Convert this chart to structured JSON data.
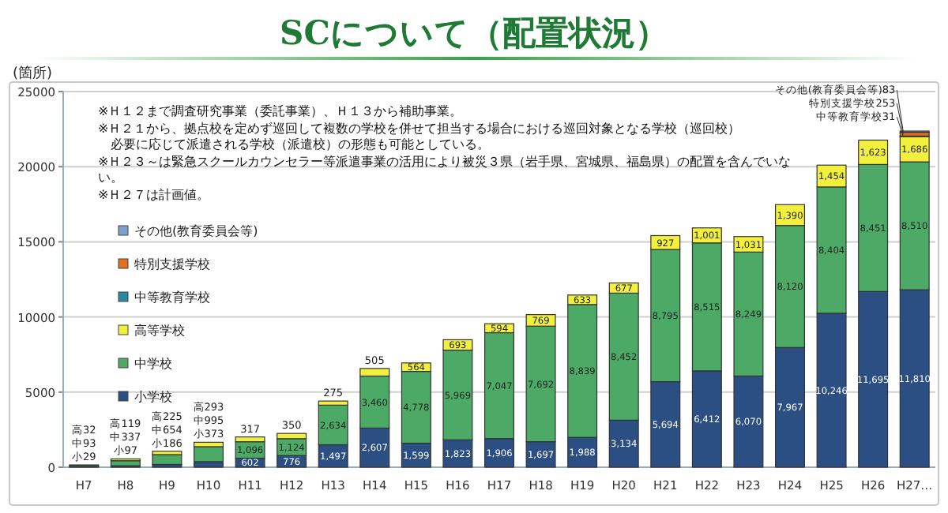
{
  "chart_data": {
    "type": "bar",
    "stacked": true,
    "title": "SCについて（配置状況）",
    "ylabel": "(箇所)",
    "categories": [
      "H7",
      "H8",
      "H9",
      "H10",
      "H11",
      "H12",
      "H13",
      "H14",
      "H15",
      "H16",
      "H17",
      "H18",
      "H19",
      "H20",
      "H21",
      "H22",
      "H23",
      "H24",
      "H25",
      "H26",
      "H27…"
    ],
    "series": [
      {
        "name": "小学校",
        "color": "#2b4f82",
        "values": [
          29,
          97,
          186,
          373,
          602,
          776,
          1497,
          2607,
          1599,
          1823,
          1906,
          1697,
          1988,
          3134,
          5694,
          6412,
          6070,
          7967,
          10246,
          11695,
          11810
        ],
        "value_labels": [
          "小29",
          "小97",
          "小186",
          "小373",
          "602",
          "776",
          "1,497",
          "2,607",
          "1,599",
          "1,823",
          "1,906",
          "1,697",
          "1,988",
          "3,134",
          "5,694",
          "6,412",
          "6,070",
          "7,967",
          "10,246",
          "11,695",
          "11,810"
        ]
      },
      {
        "name": "中学校",
        "color": "#4caa66",
        "values": [
          93,
          337,
          654,
          995,
          1096,
          1124,
          2634,
          3460,
          4778,
          5969,
          7047,
          7692,
          8839,
          8452,
          8795,
          8515,
          8249,
          8120,
          8404,
          8451,
          8510
        ],
        "value_labels": [
          "中93",
          "中337",
          "中654",
          "中995",
          "1,096",
          "1,124",
          "2,634",
          "3,460",
          "4,778",
          "5,969",
          "7,047",
          "7,692",
          "8,839",
          "8,452",
          "8,795",
          "8,515",
          "8,249",
          "8,120",
          "8,404",
          "8,451",
          "8,510"
        ]
      },
      {
        "name": "高等学校",
        "color": "#f2f03c",
        "values": [
          32,
          119,
          225,
          293,
          317,
          350,
          275,
          505,
          564,
          693,
          594,
          769,
          633,
          677,
          927,
          1001,
          1031,
          1390,
          1454,
          1623,
          1686
        ],
        "value_labels": [
          "高32",
          "高119",
          "高225",
          "高293",
          "317",
          "350",
          "275",
          "505",
          "564",
          "693",
          "594",
          "769",
          "633",
          "677",
          "927",
          "1,001",
          "1,031",
          "1,390",
          "1,454",
          "1,623",
          "1,686"
        ]
      },
      {
        "name": "中等教育学校",
        "color": "#2a8aa0",
        "values": [
          null,
          null,
          null,
          null,
          null,
          null,
          null,
          null,
          null,
          null,
          null,
          null,
          null,
          null,
          null,
          null,
          null,
          null,
          null,
          null,
          31
        ],
        "value_labels": [
          null,
          null,
          null,
          null,
          null,
          null,
          null,
          null,
          null,
          null,
          null,
          null,
          null,
          null,
          null,
          null,
          null,
          null,
          null,
          null,
          "中等教育学校31"
        ]
      },
      {
        "name": "特別支援学校",
        "color": "#e07020",
        "values": [
          null,
          null,
          null,
          null,
          null,
          null,
          null,
          null,
          null,
          null,
          null,
          null,
          null,
          null,
          null,
          null,
          null,
          null,
          null,
          null,
          253
        ],
        "value_labels": [
          null,
          null,
          null,
          null,
          null,
          null,
          null,
          null,
          null,
          null,
          null,
          null,
          null,
          null,
          null,
          null,
          null,
          null,
          null,
          null,
          "特別支援学校253"
        ]
      },
      {
        "name": "その他(教育委員会等)",
        "color": "#7f9fcf",
        "values": [
          null,
          null,
          null,
          null,
          null,
          null,
          null,
          null,
          null,
          null,
          null,
          null,
          null,
          null,
          null,
          null,
          null,
          null,
          null,
          null,
          83
        ],
        "value_labels": [
          null,
          null,
          null,
          null,
          null,
          null,
          null,
          null,
          null,
          null,
          null,
          null,
          null,
          null,
          null,
          null,
          null,
          null,
          null,
          null,
          "その他(教育委員会等)83"
        ]
      }
    ],
    "ylim": [
      0,
      25000
    ],
    "yticks": [
      0,
      5000,
      10000,
      15000,
      20000,
      25000
    ],
    "grid": "y",
    "legend": "left",
    "annotations": [
      "※Ｈ１２まで調査研究事業（委託事業）、Ｈ１３から補助事業。",
      "※Ｈ２１から、拠点校を定めず巡回して複数の学校を併せて担当する場合における巡回対象となる学校（巡回校）",
      "　必要に応じて派遣される学校（派遣校）の形態も可能としている。",
      "※Ｈ２３～は緊急スクールカウンセラー等派遣事業の活用により被災３県（岩手県、宮城県、福島県）の配置を含んでいない。",
      "※Ｈ２７は計画値。"
    ]
  }
}
